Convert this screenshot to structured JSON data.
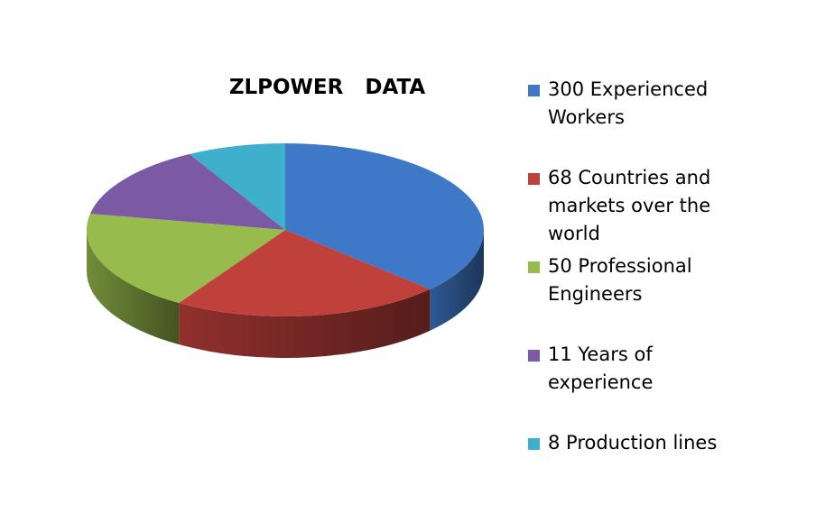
{
  "chart_data": {
    "type": "pie",
    "title": "ZLPOWER   DATA",
    "categories": [
      "300 Experienced Workers",
      "68 Countries and markets over the world",
      "50 Professional Engineers",
      "11 Years of experience",
      "8 Production lines"
    ],
    "values": [
      37,
      22,
      19,
      14,
      8
    ],
    "colors": [
      "#3f78c6",
      "#c0403c",
      "#97bb4c",
      "#7b5aa3",
      "#3fb0cc"
    ]
  }
}
